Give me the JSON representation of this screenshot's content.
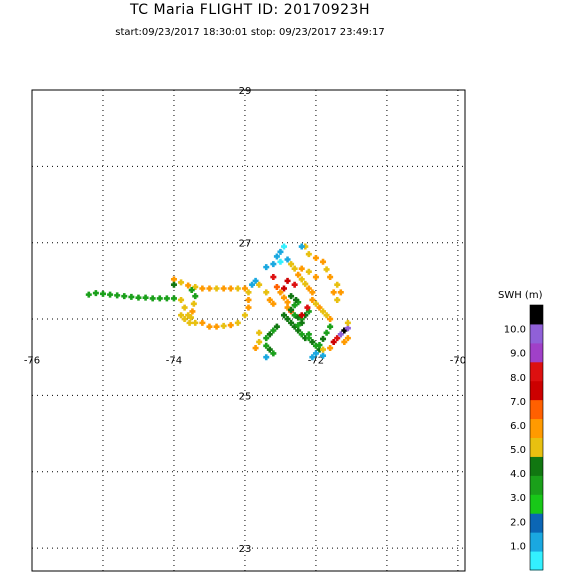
{
  "header": {
    "title": "TC Maria FLIGHT ID: 20170923H",
    "subtitle": "start:09/23/2017 18:30:01 stop: 09/23/2017 23:49:17"
  },
  "chart_data": {
    "type": "scatter",
    "title": "TC Maria FLIGHT ID: 20170923H",
    "xlim": [
      -76.0,
      -69.9
    ],
    "ylim": [
      22.7,
      29.0
    ],
    "x_ticks": [
      -76,
      -74,
      -72,
      -70
    ],
    "x_tick_labels": [
      "-76",
      "-74",
      "-72",
      "-70"
    ],
    "y_ticks": [
      29,
      27,
      25,
      23
    ],
    "y_tick_labels": [
      "29",
      "27",
      "25",
      "23"
    ],
    "grid": true,
    "colorbar": {
      "label": "SWH (m)",
      "tick_labels": [
        "1.0",
        "2.0",
        "3.0",
        "4.0",
        "5.0",
        "6.0",
        "7.0",
        "8.0",
        "9.0",
        "10.0"
      ],
      "colors": [
        "#33f0ff",
        "#1aa8e0",
        "#0b66b5",
        "#18c818",
        "#1aa01a",
        "#117711",
        "#e8c010",
        "#ff9a00",
        "#ff6000",
        "#cc0000",
        "#dd1010",
        "#a040c8",
        "#9060d8",
        "#000000"
      ]
    },
    "points": [
      [
        -75.2,
        26.32,
        3.6
      ],
      [
        -75.1,
        26.34,
        3.8
      ],
      [
        -75.0,
        26.33,
        3.5
      ],
      [
        -74.9,
        26.32,
        3.4
      ],
      [
        -74.8,
        26.31,
        3.6
      ],
      [
        -74.7,
        26.3,
        3.5
      ],
      [
        -74.6,
        26.29,
        3.7
      ],
      [
        -74.5,
        26.28,
        3.6
      ],
      [
        -74.4,
        26.28,
        3.5
      ],
      [
        -74.3,
        26.27,
        3.8
      ],
      [
        -74.2,
        26.27,
        3.9
      ],
      [
        -74.1,
        26.27,
        3.6
      ],
      [
        -74.0,
        26.27,
        3.7
      ],
      [
        -73.9,
        26.25,
        5.0
      ],
      [
        -73.85,
        26.15,
        5.2
      ],
      [
        -73.8,
        26.05,
        5.4
      ],
      [
        -73.78,
        25.95,
        5.0
      ],
      [
        -73.7,
        25.95,
        4.8
      ],
      [
        -73.6,
        25.95,
        5.5
      ],
      [
        -74.0,
        26.52,
        5.6
      ],
      [
        -73.9,
        26.48,
        5.4
      ],
      [
        -73.8,
        26.44,
        5.8
      ],
      [
        -73.7,
        26.42,
        5.2
      ],
      [
        -73.6,
        26.4,
        5.5
      ],
      [
        -73.5,
        26.4,
        5.8
      ],
      [
        -73.4,
        26.4,
        5.3
      ],
      [
        -73.3,
        26.4,
        5.6
      ],
      [
        -73.2,
        26.4,
        5.5
      ],
      [
        -73.1,
        26.4,
        5.4
      ],
      [
        -73.0,
        26.4,
        5.7
      ],
      [
        -74.0,
        26.45,
        4.4
      ],
      [
        -73.75,
        26.38,
        3.7
      ],
      [
        -73.7,
        26.3,
        3.5
      ],
      [
        -73.72,
        26.2,
        5.0
      ],
      [
        -73.74,
        26.1,
        5.6
      ],
      [
        -73.76,
        26.02,
        5.2
      ],
      [
        -73.85,
        26.0,
        5.4
      ],
      [
        -73.9,
        26.05,
        5.0
      ],
      [
        -73.5,
        25.9,
        5.5
      ],
      [
        -73.4,
        25.9,
        5.6
      ],
      [
        -73.3,
        25.91,
        5.2
      ],
      [
        -73.2,
        25.92,
        5.6
      ],
      [
        -73.1,
        25.95,
        5.4
      ],
      [
        -73.0,
        26.05,
        5.3
      ],
      [
        -72.95,
        26.15,
        5.5
      ],
      [
        -72.95,
        26.25,
        5.6
      ],
      [
        -72.95,
        26.35,
        5.2
      ],
      [
        -72.9,
        26.45,
        0.8
      ],
      [
        -72.85,
        26.5,
        1.2
      ],
      [
        -72.8,
        26.45,
        5.2
      ],
      [
        -72.7,
        26.35,
        5.4
      ],
      [
        -72.65,
        26.25,
        5.5
      ],
      [
        -72.6,
        26.2,
        5.8
      ],
      [
        -72.7,
        26.68,
        0.8
      ],
      [
        -72.6,
        26.72,
        1.0
      ],
      [
        -72.5,
        26.75,
        0.6
      ],
      [
        -72.4,
        26.78,
        0.9
      ],
      [
        -72.35,
        26.72,
        5.2
      ],
      [
        -72.3,
        26.66,
        5.4
      ],
      [
        -72.25,
        26.58,
        5.6
      ],
      [
        -72.2,
        26.52,
        5.2
      ],
      [
        -72.15,
        26.46,
        5.4
      ],
      [
        -72.1,
        26.4,
        5.5
      ],
      [
        -72.05,
        26.35,
        5.6
      ],
      [
        -72.4,
        26.5,
        7.8
      ],
      [
        -72.3,
        26.45,
        8.2
      ],
      [
        -72.45,
        26.4,
        7.6
      ],
      [
        -72.6,
        26.55,
        8.0
      ],
      [
        -72.55,
        26.42,
        6.5
      ],
      [
        -72.5,
        26.35,
        6.2
      ],
      [
        -72.45,
        26.28,
        5.8
      ],
      [
        -72.4,
        26.22,
        6.0
      ],
      [
        -72.4,
        26.15,
        6.2
      ],
      [
        -72.35,
        26.1,
        6.4
      ],
      [
        -72.45,
        26.05,
        4.2
      ],
      [
        -72.4,
        26.0,
        4.5
      ],
      [
        -72.35,
        25.95,
        4.0
      ],
      [
        -72.3,
        25.9,
        4.3
      ],
      [
        -72.25,
        25.85,
        4.6
      ],
      [
        -72.2,
        25.8,
        3.8
      ],
      [
        -72.15,
        25.75,
        4.0
      ],
      [
        -72.1,
        25.8,
        3.6
      ],
      [
        -72.3,
        26.05,
        3.5
      ],
      [
        -72.25,
        26.02,
        4.2
      ],
      [
        -72.2,
        26.0,
        3.8
      ],
      [
        -72.15,
        26.05,
        4.4
      ],
      [
        -72.1,
        26.1,
        3.6
      ],
      [
        -72.35,
        26.12,
        4.0
      ],
      [
        -72.3,
        26.18,
        3.8
      ],
      [
        -72.25,
        26.22,
        3.5
      ],
      [
        -72.2,
        25.95,
        4.5
      ],
      [
        -72.25,
        25.92,
        3.7
      ],
      [
        -72.55,
        25.9,
        4.1
      ],
      [
        -72.6,
        25.85,
        3.9
      ],
      [
        -72.65,
        25.8,
        4.2
      ],
      [
        -72.7,
        25.75,
        3.5
      ],
      [
        -72.7,
        25.65,
        3.8
      ],
      [
        -72.65,
        25.6,
        4.0
      ],
      [
        -72.6,
        25.55,
        3.6
      ],
      [
        -72.1,
        25.75,
        3.7
      ],
      [
        -72.05,
        25.7,
        4.2
      ],
      [
        -72.0,
        25.65,
        3.9
      ],
      [
        -71.95,
        25.6,
        4.0
      ],
      [
        -72.0,
        25.55,
        0.9
      ],
      [
        -72.05,
        25.5,
        1.1
      ],
      [
        -71.9,
        25.52,
        1.3
      ],
      [
        -72.7,
        25.5,
        1.0
      ],
      [
        -72.05,
        26.25,
        5.6
      ],
      [
        -72.0,
        26.2,
        5.4
      ],
      [
        -71.95,
        26.15,
        5.8
      ],
      [
        -71.9,
        26.1,
        5.3
      ],
      [
        -71.85,
        26.05,
        5.2
      ],
      [
        -71.8,
        26.0,
        5.6
      ],
      [
        -71.8,
        25.9,
        3.8
      ],
      [
        -71.85,
        25.82,
        3.6
      ],
      [
        -71.9,
        25.74,
        4.2
      ],
      [
        -71.95,
        25.66,
        3.9
      ],
      [
        -71.9,
        25.6,
        5.4
      ],
      [
        -71.8,
        25.62,
        6.2
      ],
      [
        -71.75,
        25.7,
        7.4
      ],
      [
        -71.7,
        25.75,
        8.1
      ],
      [
        -71.65,
        25.8,
        9.6
      ],
      [
        -71.6,
        25.85,
        10.5
      ],
      [
        -71.55,
        25.88,
        10.2
      ],
      [
        -71.75,
        26.35,
        5.5
      ],
      [
        -71.7,
        26.45,
        5.4
      ],
      [
        -71.65,
        26.35,
        5.8
      ],
      [
        -71.7,
        26.25,
        5.2
      ],
      [
        -71.8,
        26.55,
        5.6
      ],
      [
        -71.85,
        26.65,
        5.4
      ],
      [
        -71.9,
        26.75,
        5.5
      ],
      [
        -72.0,
        26.8,
        5.8
      ],
      [
        -72.1,
        26.85,
        5.4
      ],
      [
        -72.15,
        26.95,
        5.2
      ],
      [
        -72.2,
        26.95,
        0.8
      ],
      [
        -72.45,
        26.95,
        0.7
      ],
      [
        -72.5,
        26.88,
        0.9
      ],
      [
        -72.55,
        26.82,
        1.1
      ],
      [
        -72.0,
        26.55,
        5.6
      ],
      [
        -72.1,
        26.62,
        5.2
      ],
      [
        -72.2,
        26.66,
        5.5
      ],
      [
        -72.2,
        26.05,
        7.6
      ],
      [
        -72.12,
        26.15,
        8.0
      ],
      [
        -72.35,
        26.3,
        4.0
      ],
      [
        -72.28,
        26.25,
        4.2
      ],
      [
        -71.6,
        25.7,
        5.5
      ],
      [
        -71.55,
        25.75,
        5.8
      ],
      [
        -71.55,
        25.95,
        4.9
      ],
      [
        -72.8,
        25.7,
        5.3
      ],
      [
        -72.85,
        25.62,
        5.5
      ],
      [
        -72.8,
        25.82,
        5.2
      ]
    ]
  }
}
